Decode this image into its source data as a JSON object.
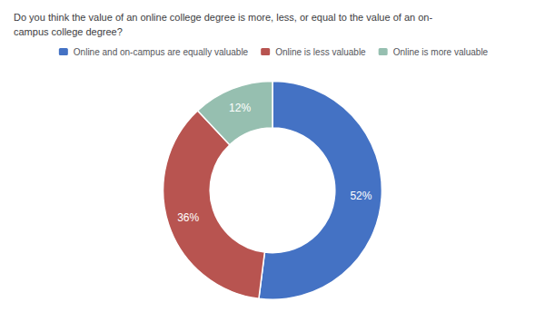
{
  "chart_data": {
    "type": "pie",
    "title": "Do you think the value of an online college degree is more, less, or equal to the value of an on-\ncampus college degree?",
    "categories": [
      "Online and on-campus are equally valuable",
      "Online is less valuable",
      "Online is more valuable"
    ],
    "values": [
      52,
      36,
      12
    ],
    "value_labels": [
      "52%",
      "36%",
      "12%"
    ],
    "colors": [
      "#4472C4",
      "#B85450",
      "#96BFB0"
    ],
    "data_labels": true,
    "legend": "top"
  }
}
